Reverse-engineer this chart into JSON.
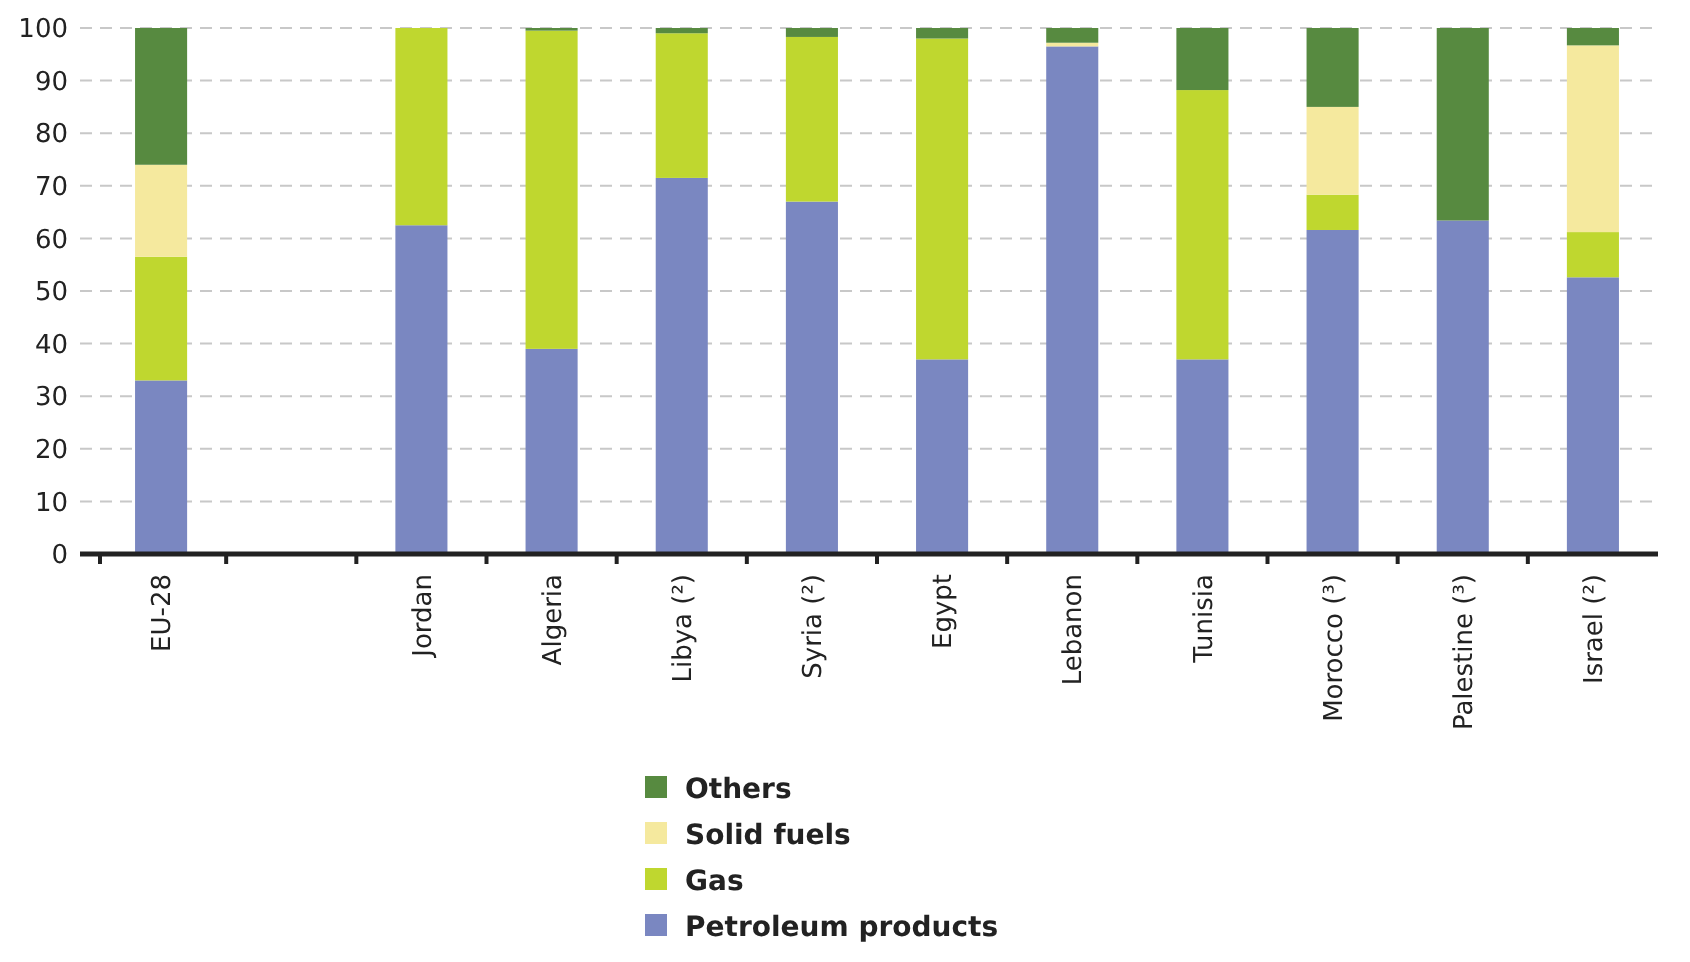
{
  "chart_data": {
    "type": "bar",
    "stacked": true,
    "categories": [
      "EU-28",
      null,
      "Jordan",
      "Algeria",
      "Libya (²)",
      "Syria (²)",
      "Egypt",
      "Lebanon",
      "Tunisia",
      "Morocco (³)",
      "Palestine (³)",
      "Israel (²)"
    ],
    "series": [
      {
        "name": "Petroleum products",
        "color": "#7a87c1",
        "values": [
          33,
          null,
          62.5,
          39,
          71.5,
          67,
          37,
          96.5,
          37,
          61.6,
          63.4,
          52.6
        ]
      },
      {
        "name": "Gas",
        "color": "#bfd72f",
        "values": [
          23.5,
          null,
          37.5,
          60.5,
          27.5,
          31.3,
          61,
          0,
          51.2,
          6.7,
          0,
          8.6
        ]
      },
      {
        "name": "Solid fuels",
        "color": "#f5e99e",
        "values": [
          17.5,
          null,
          0,
          0,
          0,
          0,
          0,
          0.7,
          0,
          16.7,
          0,
          35.5
        ]
      },
      {
        "name": "Others",
        "color": "#578a40",
        "values": [
          26,
          null,
          0,
          0.5,
          1,
          1.7,
          2,
          2.8,
          11.8,
          15,
          36.6,
          3.3
        ]
      }
    ],
    "ylim": [
      0,
      100
    ],
    "yticks": [
      0,
      10,
      20,
      30,
      40,
      50,
      60,
      70,
      80,
      90,
      100
    ],
    "grid": "y",
    "legend": "bottom"
  }
}
